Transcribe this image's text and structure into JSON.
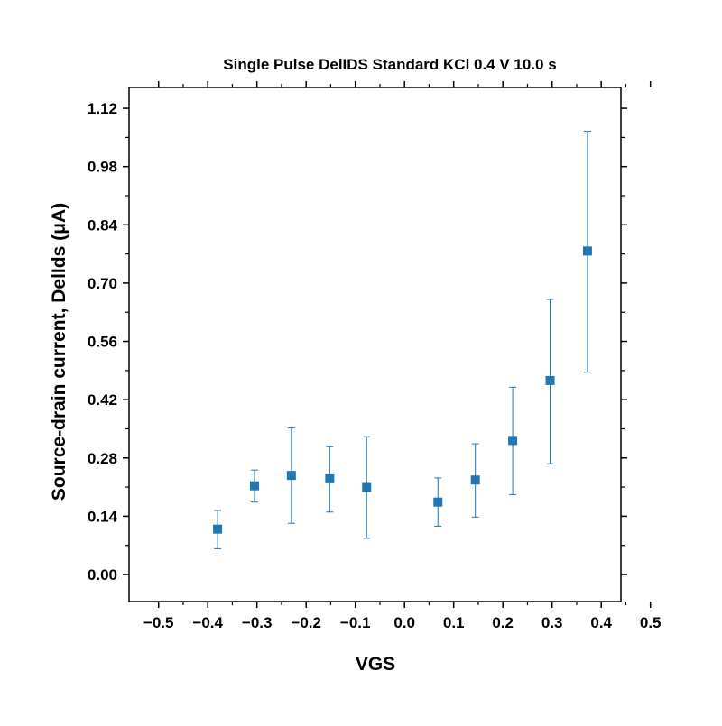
{
  "chart_data": {
    "type": "scatter",
    "title": "Single Pulse DelIDS Standard KCl 0.4 V 10.0 s",
    "xlabel": "VGS",
    "ylabel": "Source-drain current, DelIds (μA)",
    "x_tick_labels": [
      "−0.5",
      "−0.4",
      "−0.3",
      "−0.2",
      "−0.1",
      "0.0",
      "0.1",
      "0.2",
      "0.3",
      "0.4",
      "0.5"
    ],
    "x_tick_values": [
      -0.5,
      -0.4,
      -0.3,
      -0.2,
      -0.1,
      0.0,
      0.1,
      0.2,
      0.3,
      0.4,
      0.5
    ],
    "y_tick_labels": [
      "0.00",
      "0.14",
      "0.28",
      "0.42",
      "0.56",
      "0.70",
      "0.84",
      "0.98",
      "1.12"
    ],
    "y_tick_values": [
      0.0,
      0.14,
      0.28,
      0.42,
      0.56,
      0.7,
      0.84,
      0.98,
      1.12
    ],
    "xlim": [
      -0.56,
      0.44
    ],
    "ylim": [
      -0.065,
      1.17
    ],
    "grid": false,
    "marker_color": "#1f77b4",
    "points": [
      {
        "x": -0.38,
        "y": 0.109,
        "err_low": 0.062,
        "err_high": 0.154
      },
      {
        "x": -0.305,
        "y": 0.213,
        "err_low": 0.174,
        "err_high": 0.251
      },
      {
        "x": -0.23,
        "y": 0.238,
        "err_low": 0.123,
        "err_high": 0.352
      },
      {
        "x": -0.152,
        "y": 0.23,
        "err_low": 0.15,
        "err_high": 0.307
      },
      {
        "x": -0.077,
        "y": 0.209,
        "err_low": 0.087,
        "err_high": 0.331
      },
      {
        "x": 0.068,
        "y": 0.174,
        "err_low": 0.116,
        "err_high": 0.232
      },
      {
        "x": 0.144,
        "y": 0.227,
        "err_low": 0.138,
        "err_high": 0.314
      },
      {
        "x": 0.22,
        "y": 0.322,
        "err_low": 0.192,
        "err_high": 0.45
      },
      {
        "x": 0.296,
        "y": 0.466,
        "err_low": 0.266,
        "err_high": 0.661
      },
      {
        "x": 0.372,
        "y": 0.777,
        "err_low": 0.486,
        "err_high": 1.065
      }
    ]
  }
}
